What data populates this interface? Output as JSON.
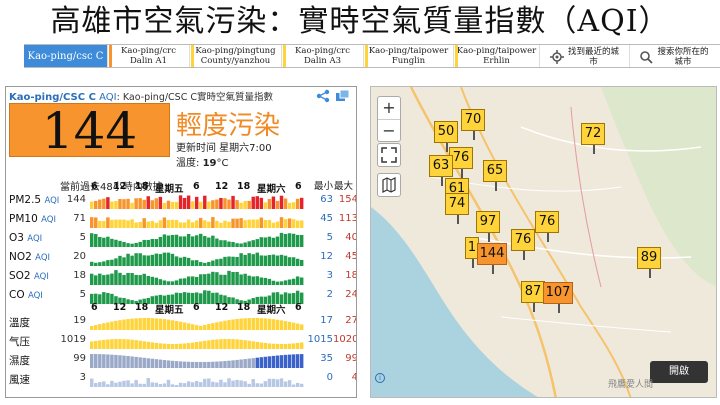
{
  "title": "高雄市空氣污染：實時空氣質量指數（AQI）",
  "tabs": [
    {
      "line1": "Kao-ping/csc C",
      "line2": "",
      "active": true,
      "color": "#f7942d"
    },
    {
      "line1": "Kao-ping/crc",
      "line2": "Dalin A1",
      "active": false,
      "color": "#f7942d"
    },
    {
      "line1": "Kao-ping/pingtung",
      "line2": "County/yanzhou",
      "active": false,
      "color": "#ffd43a"
    },
    {
      "line1": "Kao-ping/crc",
      "line2": "Dalin A3",
      "active": false,
      "color": "#ffd43a"
    },
    {
      "line1": "Kao-ping/taipower",
      "line2": "Funglin",
      "active": false,
      "color": "#ffd43a"
    },
    {
      "line1": "Kao-ping/taipower",
      "line2": "Erhlin",
      "active": false,
      "color": "#ffd43a"
    }
  ],
  "tools": {
    "nearest": "找到最近的城市",
    "search": "搜索你所在的城市"
  },
  "station": {
    "name": "Kao-ping/CSC C",
    "aqi_label": "AQI",
    "subtitle": ": Kao-ping/CSC C實時空氣質量指數",
    "aqi": "144",
    "level": "輕度污染",
    "updated": "更新时间 星期六7:00",
    "temp_label": "溫度:",
    "temp_value": "19",
    "temp_unit": "°C"
  },
  "history": {
    "header": "當前過去48小時內數據",
    "min_label": "最小",
    "max_label": "最大",
    "ticks_top": [
      "6",
      "12",
      "18",
      "星期五",
      "6",
      "12",
      "18",
      "星期六",
      "6"
    ],
    "ticks_mid": [
      "6",
      "12",
      "18",
      "星期五",
      "6",
      "12",
      "18",
      "星期六",
      "6"
    ]
  },
  "rows": [
    {
      "name": "PM2.5",
      "unit": "AQI",
      "current": "144",
      "min": "63",
      "max": "154",
      "kind": "pm25"
    },
    {
      "name": "PM10",
      "unit": "AQI",
      "current": "71",
      "min": "45",
      "max": "113",
      "kind": "pm10"
    },
    {
      "name": "O3",
      "unit": "AQI",
      "current": "5",
      "min": "5",
      "max": "40",
      "kind": "green"
    },
    {
      "name": "NO2",
      "unit": "AQI",
      "current": "20",
      "min": "12",
      "max": "45",
      "kind": "green"
    },
    {
      "name": "SO2",
      "unit": "AQI",
      "current": "18",
      "min": "3",
      "max": "18",
      "kind": "green"
    },
    {
      "name": "CO",
      "unit": "AQI",
      "current": "5",
      "min": "2",
      "max": "24",
      "kind": "green"
    },
    {
      "name": "溫度",
      "unit": "",
      "current": "19",
      "min": "17",
      "max": "27",
      "kind": "temp"
    },
    {
      "name": "气压",
      "unit": "",
      "current": "1019",
      "min": "1015",
      "max": "1020",
      "kind": "press"
    },
    {
      "name": "濕度",
      "unit": "",
      "current": "99",
      "min": "35",
      "max": "99",
      "kind": "hum"
    },
    {
      "name": "風速",
      "unit": "",
      "current": "3",
      "min": "0",
      "max": "4",
      "kind": "wind"
    }
  ],
  "map": {
    "markers": [
      "70",
      "50",
      "72",
      "76",
      "63",
      "65",
      "61",
      "74",
      "97",
      "76",
      "1",
      "144",
      "76",
      "89",
      "87",
      "107"
    ],
    "open_label": "開啟",
    "colors": {
      "moderate": "#ffd43a",
      "unhealthy": "#f7942d"
    }
  },
  "footer": "飛鷹愛人間"
}
